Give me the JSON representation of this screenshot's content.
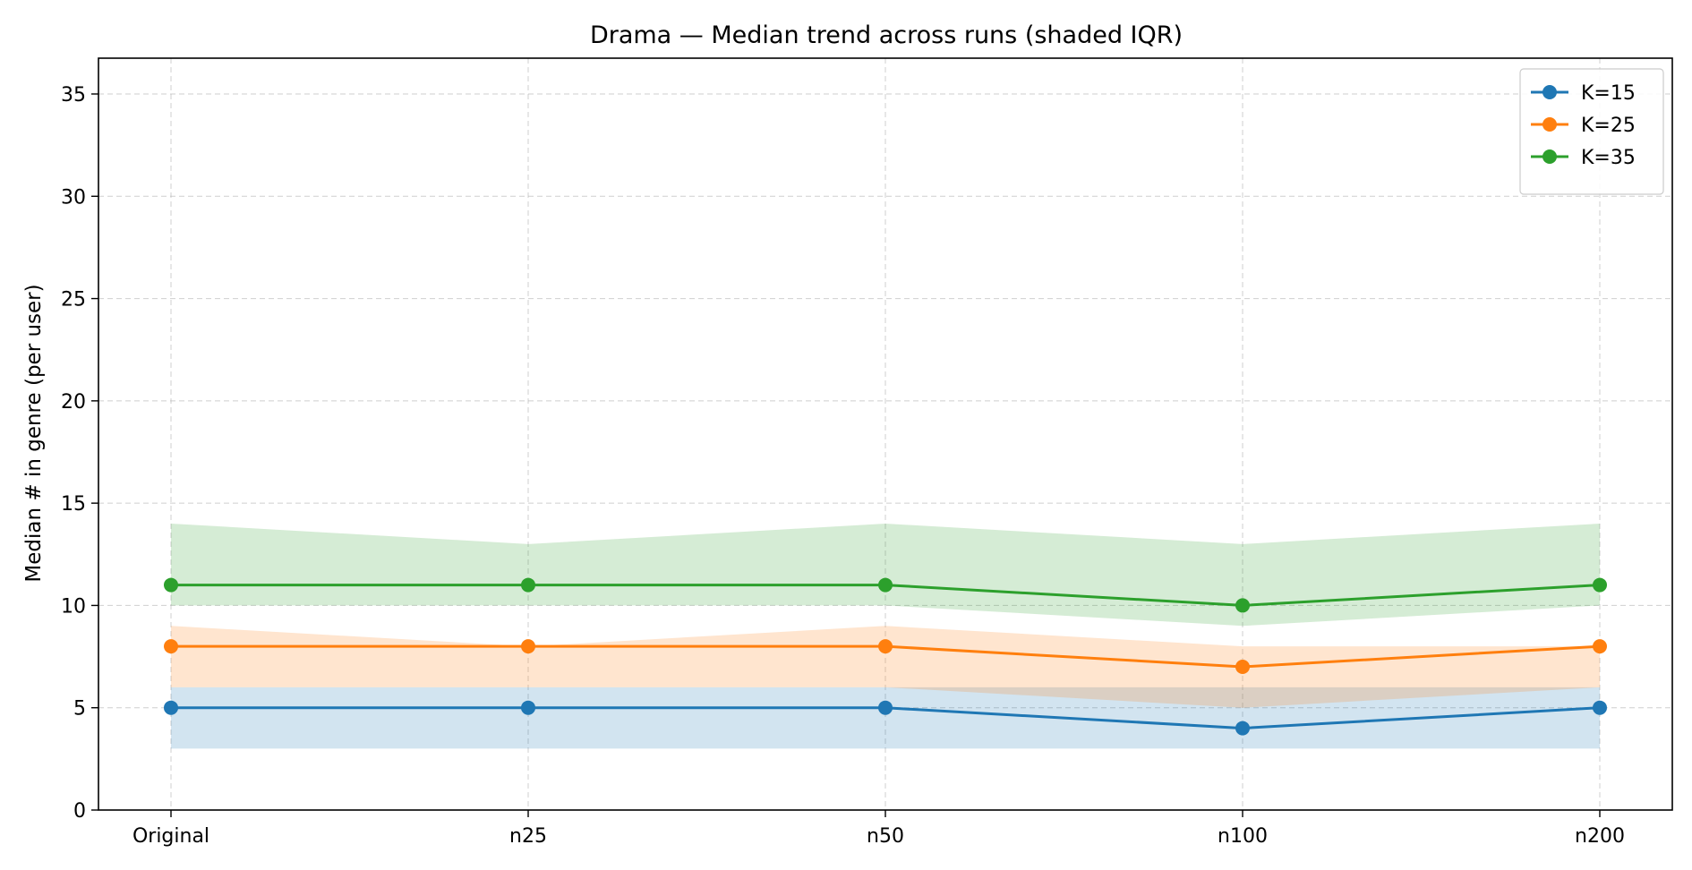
{
  "chart_data": {
    "type": "line",
    "title": "Drama — Median trend across runs (shaded IQR)",
    "xlabel": "",
    "ylabel": "Median # in genre (per user)",
    "categories": [
      "Original",
      "n25",
      "n50",
      "n100",
      "n200"
    ],
    "ylim": [
      0,
      36.75
    ],
    "yticks": [
      0,
      5,
      10,
      15,
      20,
      25,
      30,
      35
    ],
    "grid": true,
    "legend_position": "top-right",
    "series": [
      {
        "name": "K=15",
        "color": "#1f77b4",
        "values": [
          5,
          5,
          5,
          4,
          5
        ],
        "iqr_low": [
          3,
          3,
          3,
          3,
          3
        ],
        "iqr_high": [
          6,
          6,
          6,
          6,
          6
        ]
      },
      {
        "name": "K=25",
        "color": "#ff7f0e",
        "values": [
          8,
          8,
          8,
          7,
          8
        ],
        "iqr_low": [
          6,
          6,
          6,
          5,
          6
        ],
        "iqr_high": [
          9,
          8,
          9,
          8,
          8
        ]
      },
      {
        "name": "K=35",
        "color": "#2ca02c",
        "values": [
          11,
          11,
          11,
          10,
          11
        ],
        "iqr_low": [
          10,
          10,
          10,
          9,
          10
        ],
        "iqr_high": [
          14,
          13,
          14,
          13,
          14
        ]
      }
    ]
  }
}
